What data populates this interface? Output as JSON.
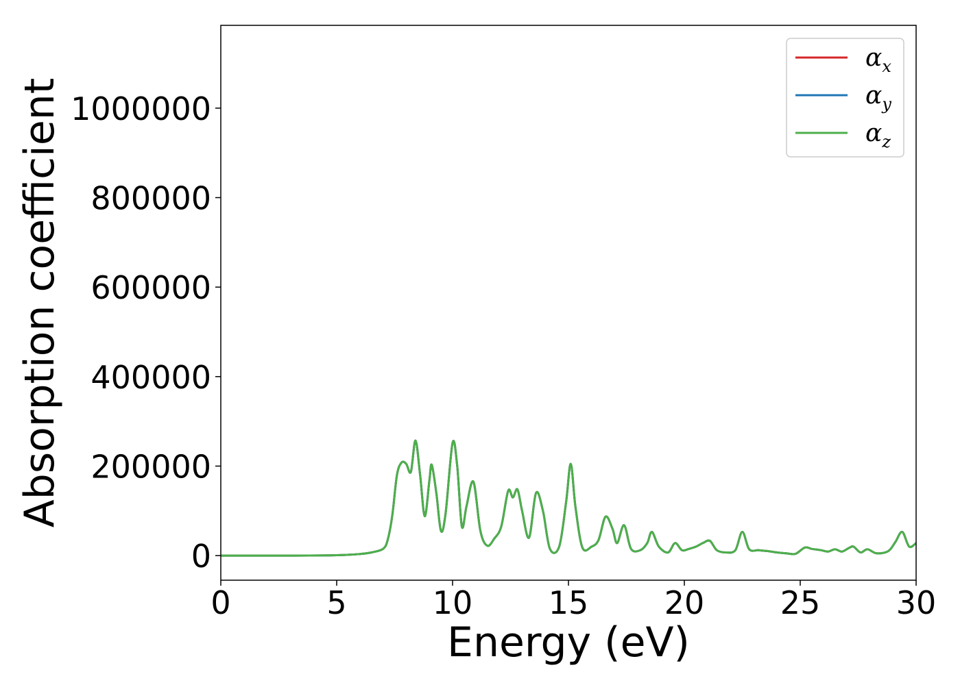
{
  "chart_data": {
    "type": "line",
    "xlabel": "Energy (eV)",
    "ylabel": "Absorption coefficient",
    "xlim": [
      0,
      30
    ],
    "ylim": [
      -55000,
      1185000
    ],
    "x_ticks": [
      0,
      5,
      10,
      15,
      20,
      25,
      30
    ],
    "x_tick_labels": [
      "0",
      "5",
      "10",
      "15",
      "20",
      "25",
      "30"
    ],
    "y_ticks": [
      0,
      200000,
      400000,
      600000,
      800000,
      1000000
    ],
    "y_tick_labels": [
      "0",
      "200000",
      "400000",
      "600000",
      "800000",
      "1000000"
    ],
    "grid": false,
    "legend_position": "top-right",
    "legend": [
      {
        "symbol": "α",
        "sub": "x",
        "color": "#d62728"
      },
      {
        "symbol": "α",
        "sub": "y",
        "color": "#1f77b4"
      },
      {
        "symbol": "α",
        "sub": "z",
        "color": "#4daf4a"
      }
    ],
    "series": [
      {
        "name": "αx",
        "color": "#d62728",
        "note": "identical to αz"
      },
      {
        "name": "αy",
        "color": "#1f77b4",
        "note": "identical to αz"
      },
      {
        "name": "αz",
        "color": "#4daf4a",
        "x": [
          0,
          3,
          5,
          6,
          6.5,
          7,
          7.2,
          7.4,
          7.6,
          7.8,
          8.0,
          8.2,
          8.4,
          8.6,
          8.8,
          9.0,
          9.1,
          9.3,
          9.5,
          9.7,
          10.0,
          10.2,
          10.4,
          10.6,
          10.9,
          11.2,
          11.5,
          11.8,
          12.1,
          12.4,
          12.6,
          12.8,
          13.0,
          13.3,
          13.6,
          13.9,
          14.2,
          14.6,
          14.9,
          15.1,
          15.3,
          15.6,
          16.0,
          16.3,
          16.6,
          16.9,
          17.1,
          17.4,
          17.7,
          18.1,
          18.4,
          18.6,
          18.9,
          19.3,
          19.6,
          19.9,
          20.2,
          20.5,
          20.8,
          21.1,
          21.4,
          21.8,
          22.2,
          22.5,
          22.8,
          23.2,
          23.6,
          24.0,
          24.4,
          24.8,
          25.2,
          25.5,
          25.9,
          26.2,
          26.5,
          26.8,
          27.1,
          27.3,
          27.6,
          27.9,
          28.3,
          28.8,
          29.1,
          29.4,
          29.7,
          30.0
        ],
        "y": [
          0,
          0,
          800,
          3500,
          7000,
          15000,
          35000,
          90000,
          180000,
          208000,
          205000,
          187000,
          257000,
          180000,
          88000,
          168000,
          203000,
          140000,
          55000,
          95000,
          252000,
          200000,
          65000,
          110000,
          165000,
          55000,
          22000,
          38000,
          65000,
          145000,
          130000,
          148000,
          100000,
          40000,
          140000,
          100000,
          15000,
          20000,
          120000,
          205000,
          110000,
          18000,
          20000,
          35000,
          87000,
          60000,
          28000,
          68000,
          15000,
          12000,
          28000,
          53000,
          20000,
          7000,
          28000,
          12000,
          15000,
          20000,
          28000,
          33000,
          12000,
          7000,
          12000,
          53000,
          14000,
          12000,
          10000,
          7000,
          5000,
          4000,
          18000,
          15000,
          12000,
          9000,
          14000,
          9000,
          17000,
          20000,
          7000,
          14000,
          5000,
          10000,
          30000,
          53000,
          20000,
          28000
        ]
      }
    ]
  }
}
